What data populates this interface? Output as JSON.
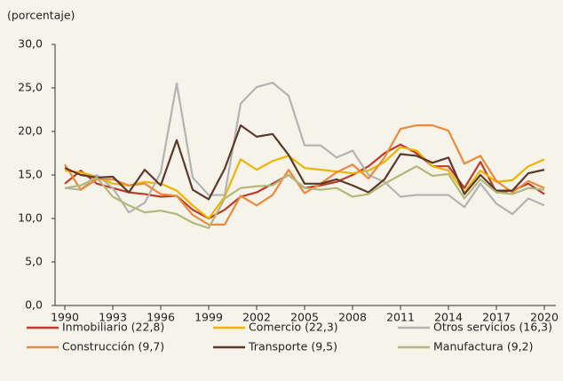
{
  "chart_data": {
    "type": "line",
    "y_label": "(porcentaje)",
    "x": [
      1990,
      1991,
      1992,
      1993,
      1994,
      1995,
      1996,
      1997,
      1998,
      1999,
      2000,
      2001,
      2002,
      2003,
      2004,
      2005,
      2006,
      2007,
      2008,
      2009,
      2010,
      2011,
      2012,
      2013,
      2014,
      2015,
      2016,
      2017,
      2018,
      2019,
      2020
    ],
    "xlim": [
      1990,
      2020
    ],
    "xticks": [
      1990,
      1993,
      1996,
      1999,
      2002,
      2005,
      2008,
      2011,
      2014,
      2017,
      2020
    ],
    "ylim": [
      0,
      30
    ],
    "yticks": [
      {
        "value": 0,
        "label": "0,0"
      },
      {
        "value": 5,
        "label": "5,0"
      },
      {
        "value": 10,
        "label": "10,0"
      },
      {
        "value": 15,
        "label": "15,0"
      },
      {
        "value": 20,
        "label": "20,0"
      },
      {
        "value": 25,
        "label": "25,0"
      },
      {
        "value": 30,
        "label": "30,0"
      }
    ],
    "grid": false,
    "legend": "bottom",
    "series": [
      {
        "name": "Inmobiliario (22,8)",
        "color": "#c0392b",
        "values": [
          14,
          15.5,
          14,
          13.5,
          13,
          12.8,
          12.5,
          12.6,
          11,
          10,
          11,
          12.5,
          13,
          14,
          15,
          13.5,
          13.8,
          14.2,
          15,
          16,
          17.5,
          18.5,
          17.5,
          16,
          16,
          13.5,
          16.5,
          13,
          13.2,
          14,
          12.8
        ]
      },
      {
        "name": "Comercio (22,3)",
        "color": "#f0b400",
        "values": [
          15.5,
          15.3,
          14.8,
          14,
          13.8,
          14.2,
          14,
          13.2,
          11.5,
          10,
          12.5,
          16.8,
          15.6,
          16.6,
          17.2,
          15.8,
          15.6,
          15.4,
          15.2,
          15.5,
          16.5,
          18.2,
          17.8,
          16,
          15.5,
          13,
          15.5,
          14.2,
          14.4,
          16,
          16.8
        ]
      },
      {
        "name": "Otros servicios (16,3)",
        "color": "#b3b3b3",
        "values": [
          13.5,
          13.3,
          15,
          13.5,
          10.7,
          11.8,
          15.3,
          25.5,
          14.7,
          12.7,
          12.7,
          23.2,
          25.1,
          25.6,
          24.1,
          18.4,
          18.4,
          17,
          17.8,
          15,
          14.2,
          12.5,
          12.7,
          12.7,
          12.7,
          11.3,
          14,
          11.7,
          10.5,
          12.3,
          11.5
        ]
      },
      {
        "name": "Construcción (9,7)",
        "color": "#ec8a3a",
        "values": [
          16.2,
          13.3,
          14.5,
          14.5,
          13.8,
          14,
          12.8,
          12.6,
          10.4,
          9.3,
          9.3,
          12.6,
          11.5,
          12.7,
          15.6,
          12.9,
          14,
          15.3,
          16.2,
          14.6,
          17,
          20.3,
          20.7,
          20.7,
          20.1,
          16.3,
          17.2,
          14.3,
          13,
          14.3,
          13.5
        ]
      },
      {
        "name": "Transporte (9,5)",
        "color": "#5c3a2a",
        "values": [
          15.8,
          15,
          14.7,
          14.8,
          13,
          15.6,
          13.8,
          19,
          13.3,
          12.2,
          15.7,
          20.7,
          19.4,
          19.7,
          17.3,
          14,
          14,
          14.5,
          13.8,
          13,
          14.5,
          17.4,
          17.2,
          16.4,
          17,
          12.8,
          15,
          13.2,
          13.2,
          15.2,
          15.6
        ]
      },
      {
        "name": "Manufactura (9,2)",
        "color": "#b5b87a",
        "values": [
          13.5,
          13.8,
          14.7,
          12.5,
          11.5,
          10.7,
          10.9,
          10.5,
          9.5,
          8.9,
          12.3,
          13.5,
          13.7,
          13.8,
          15,
          13.5,
          13.3,
          13.5,
          12.5,
          12.8,
          14,
          15,
          16,
          14.9,
          15.1,
          12.3,
          14.5,
          13,
          12.8,
          13.5,
          13.3
        ]
      }
    ]
  }
}
